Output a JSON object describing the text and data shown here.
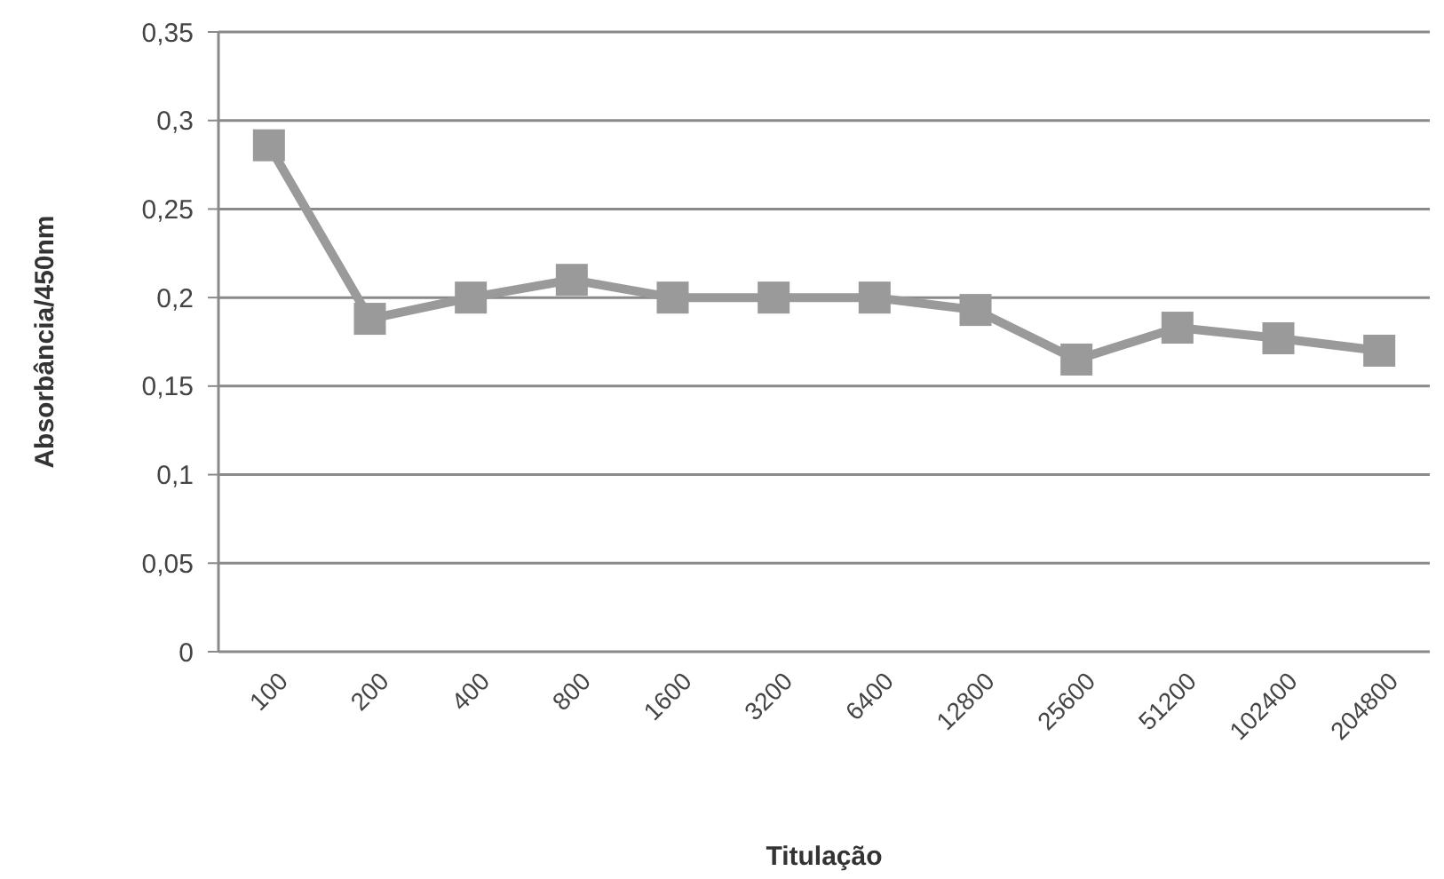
{
  "chart_data": {
    "type": "line",
    "xlabel": "Titulação",
    "ylabel": "Absorbância/450nm",
    "categories": [
      "100",
      "200",
      "400",
      "800",
      "1600",
      "3200",
      "6400",
      "12800",
      "25600",
      "51200",
      "102400",
      "204800"
    ],
    "series": [
      {
        "color": "#9a9a9a",
        "values": [
          0.286,
          0.188,
          0.2,
          0.21,
          0.2,
          0.2,
          0.2,
          0.193,
          0.165,
          0.183,
          0.177,
          0.17
        ]
      }
    ],
    "ylim": [
      0,
      0.35
    ],
    "yticks": [
      {
        "value": 0,
        "label": "0"
      },
      {
        "value": 0.05,
        "label": "0,05"
      },
      {
        "value": 0.1,
        "label": "0,1"
      },
      {
        "value": 0.15,
        "label": "0,15"
      },
      {
        "value": 0.2,
        "label": "0,2"
      },
      {
        "value": 0.25,
        "label": "0,25"
      },
      {
        "value": 0.3,
        "label": "0,3"
      },
      {
        "value": 0.35,
        "label": "0,35"
      }
    ],
    "grid": "y",
    "marker": "square",
    "line_style": "solid"
  }
}
